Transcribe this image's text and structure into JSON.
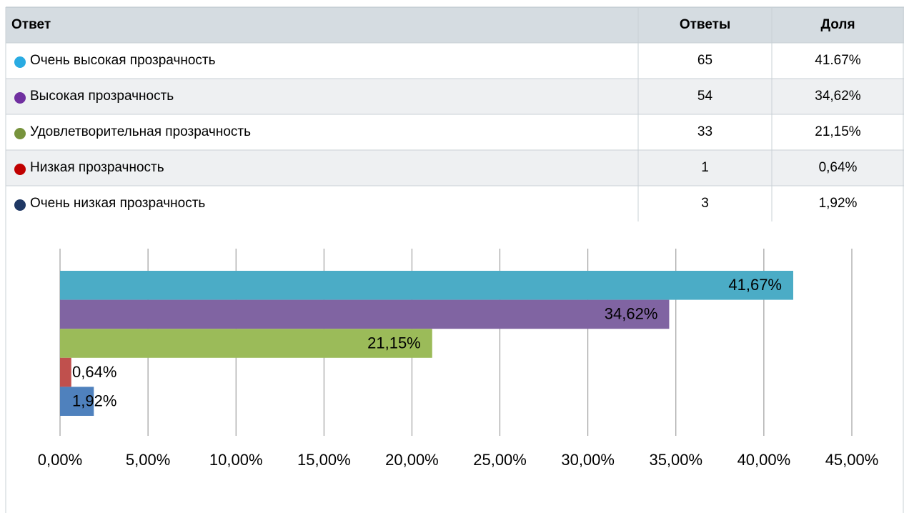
{
  "table": {
    "header": [
      "Ответ",
      "Ответы",
      "Доля"
    ],
    "rows": [
      [
        "Очень высокая прозрачность",
        65,
        "41.67%"
      ],
      [
        "Высокая прозрачность",
        54,
        "34,62%"
      ],
      [
        "Удовлетворительная прозрачность",
        33,
        "21,15%"
      ],
      [
        "Низкая прозрачность",
        1,
        "0,64%"
      ],
      [
        "Очень низкая прозрачность",
        3,
        "1,92%"
      ]
    ],
    "dot_colors": [
      "#29abe2",
      "#7030a0",
      "#77933c",
      "#c00000",
      "#1f3864"
    ]
  },
  "chart_data": {
    "type": "bar",
    "orientation": "horizontal",
    "values": [
      41.67,
      34.62,
      21.15,
      0.64,
      1.92
    ],
    "value_labels": [
      "41,67%",
      "34,62%",
      "21,15%",
      "0,64%",
      "1,92%"
    ],
    "colors": [
      "#4bacc6",
      "#8064a2",
      "#9bbb59",
      "#c0504d",
      "#4f81bd"
    ],
    "xlim": [
      0,
      45
    ],
    "xticks": [
      {
        "value": 0,
        "label": "0,00%"
      },
      {
        "value": 5,
        "label": "5,00%"
      },
      {
        "value": 10,
        "label": "10,00%"
      },
      {
        "value": 15,
        "label": "15,00%"
      },
      {
        "value": 20,
        "label": "20,00%"
      },
      {
        "value": 25,
        "label": "25,00%"
      },
      {
        "value": 30,
        "label": "30,00%"
      },
      {
        "value": 35,
        "label": "35,00%"
      },
      {
        "value": 40,
        "label": "40,00%"
      },
      {
        "value": 45,
        "label": "45,00%"
      }
    ],
    "grid": true
  }
}
